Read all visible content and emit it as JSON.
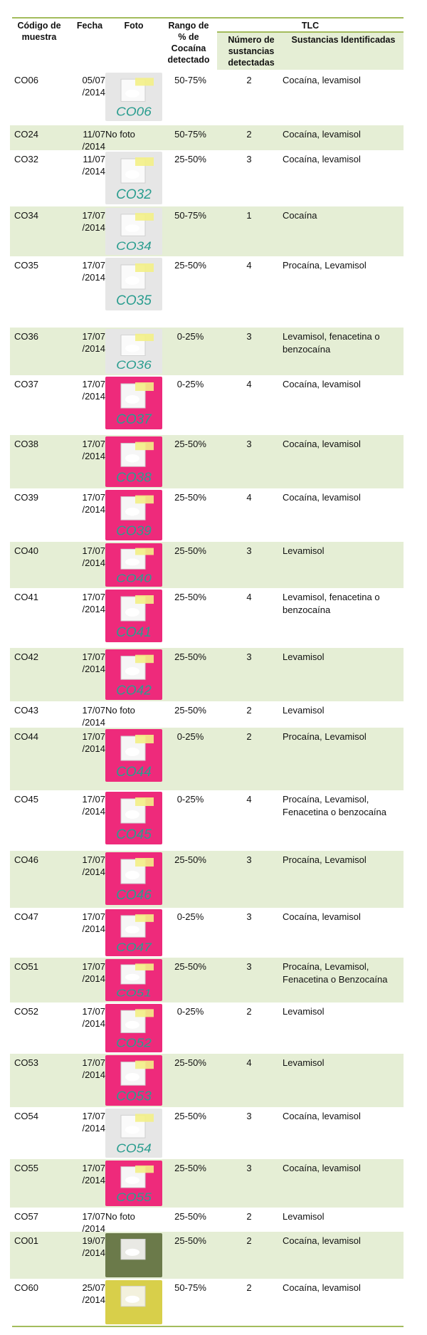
{
  "header": {
    "codigo": "Código de muestra",
    "fecha": "Fecha",
    "foto": "Foto",
    "rango": "Rango de % de Cocaína detectado",
    "tlc": "TLC",
    "numero": "Número de sustancias detectadas",
    "sustancias": "Sustancias Identificadas"
  },
  "colors": {
    "rule": "#a3bc5c",
    "shade": "#e5eed5",
    "photo_label_ink": "#2a9d8f",
    "pink_paper": "#ee2a7b",
    "white_paper": "#e6e6e6",
    "green_paper": "#6b7a4a",
    "yellow_paper": "#d8cf4a"
  },
  "rows": [
    {
      "code": "CO06",
      "date_a": "05/07",
      "date_b": "/2014",
      "photo_label": "CO06",
      "photo_bg": "white",
      "nofoto": "",
      "range": "50-75%",
      "num": "2",
      "subs": "Cocaína, levamisol",
      "shade": false
    },
    {
      "code": "CO24",
      "date_a": "11/07",
      "date_b": "/2014",
      "photo_label": "",
      "photo_bg": "",
      "nofoto": "No foto",
      "range": "50-75%",
      "num": "2",
      "subs": "Cocaína, levamisol",
      "shade": true
    },
    {
      "code": "CO32",
      "date_a": "11/07",
      "date_b": "/2014",
      "photo_label": "CO32",
      "photo_bg": "white",
      "nofoto": "",
      "range": "25-50%",
      "num": "3",
      "subs": "Cocaína, levamisol",
      "shade": false
    },
    {
      "code": "CO34",
      "date_a": "17/07",
      "date_b": "/2014",
      "photo_label": "CO34",
      "photo_bg": "white",
      "nofoto": "",
      "range": "50-75%",
      "num": "1",
      "subs": "Cocaína",
      "shade": true
    },
    {
      "code": "CO35",
      "date_a": "17/07",
      "date_b": "/2014",
      "photo_label": "CO35",
      "photo_bg": "white",
      "nofoto": "",
      "range": "25-50%",
      "num": "4",
      "subs": "Procaína, Levamisol",
      "shade": false
    },
    {
      "code": "CO36",
      "date_a": "17/07",
      "date_b": "/2014",
      "photo_label": "CO36",
      "photo_bg": "white",
      "nofoto": "",
      "range": "0-25%",
      "num": "3",
      "subs": "Levamisol, fenacetina o benzocaína",
      "shade": true
    },
    {
      "code": "CO37",
      "date_a": "17/07",
      "date_b": "/2014",
      "photo_label": "CO37",
      "photo_bg": "pink",
      "nofoto": "",
      "range": "0-25%",
      "num": "4",
      "subs": "Cocaína, levamisol",
      "shade": false
    },
    {
      "code": "CO38",
      "date_a": "17/07",
      "date_b": "/2014",
      "photo_label": "CO38",
      "photo_bg": "pink",
      "nofoto": "",
      "range": "25-50%",
      "num": "3",
      "subs": "Cocaína, levamisol",
      "shade": true
    },
    {
      "code": "CO39",
      "date_a": "17/07",
      "date_b": "/2014",
      "photo_label": "CO39",
      "photo_bg": "pink",
      "nofoto": "",
      "range": "25-50%",
      "num": "4",
      "subs": "Cocaína, levamisol",
      "shade": false
    },
    {
      "code": "CO40",
      "date_a": "17/07",
      "date_b": "/2014",
      "photo_label": "CO40",
      "photo_bg": "pink",
      "nofoto": "",
      "range": "25-50%",
      "num": "3",
      "subs": "Levamisol",
      "shade": true
    },
    {
      "code": "CO41",
      "date_a": "17/07",
      "date_b": "/2014",
      "photo_label": "CO41",
      "photo_bg": "pink",
      "nofoto": "",
      "range": "25-50%",
      "num": "4",
      "subs": "Levamisol, fenacetina o benzocaína",
      "shade": false
    },
    {
      "code": "CO42",
      "date_a": "17/07",
      "date_b": "/2014",
      "photo_label": "CO42",
      "photo_bg": "pink",
      "nofoto": "",
      "range": "25-50%",
      "num": "3",
      "subs": "Levamisol",
      "shade": true
    },
    {
      "code": "CO43",
      "date_a": "17/07",
      "date_b": "/2014",
      "photo_label": "",
      "photo_bg": "",
      "nofoto": "No foto",
      "range": "25-50%",
      "num": "2",
      "subs": "Levamisol",
      "shade": false
    },
    {
      "code": "CO44",
      "date_a": "17/07",
      "date_b": "/2014",
      "photo_label": "CO44",
      "photo_bg": "pink",
      "nofoto": "",
      "range": "0-25%",
      "num": "2",
      "subs": "Procaína, Levamisol",
      "shade": true
    },
    {
      "code": "CO45",
      "date_a": "17/07",
      "date_b": "/2014",
      "photo_label": "CO45",
      "photo_bg": "pink",
      "nofoto": "",
      "range": "0-25%",
      "num": "4",
      "subs": "Procaína, Levamisol, Fenacetina o benzocaína",
      "shade": false
    },
    {
      "code": "CO46",
      "date_a": "17/07",
      "date_b": "/2014",
      "photo_label": "CO46",
      "photo_bg": "pink",
      "nofoto": "",
      "range": "25-50%",
      "num": "3",
      "subs": "Procaína, Levamisol",
      "shade": true
    },
    {
      "code": "CO47",
      "date_a": "17/07",
      "date_b": "/2014",
      "photo_label": "CO47",
      "photo_bg": "pink",
      "nofoto": "",
      "range": "0-25%",
      "num": "3",
      "subs": "Cocaína, levamisol",
      "shade": false
    },
    {
      "code": "CO51",
      "date_a": "17/07",
      "date_b": "/2014",
      "photo_label": "CO51",
      "photo_bg": "pink",
      "nofoto": "",
      "range": "25-50%",
      "num": "3",
      "subs": "Procaína, Levamisol, Fenacetina o Benzocaína",
      "shade": true
    },
    {
      "code": "CO52",
      "date_a": "17/07",
      "date_b": "/2014",
      "photo_label": "CO52",
      "photo_bg": "pink",
      "nofoto": "",
      "range": "0-25%",
      "num": "2",
      "subs": "Levamisol",
      "shade": false
    },
    {
      "code": "CO53",
      "date_a": "17/07",
      "date_b": "/2014",
      "photo_label": "CO53",
      "photo_bg": "pink",
      "nofoto": "",
      "range": "25-50%",
      "num": "4",
      "subs": "Levamisol",
      "shade": true
    },
    {
      "code": "CO54",
      "date_a": "17/07",
      "date_b": "/2014",
      "photo_label": "CO54",
      "photo_bg": "white",
      "nofoto": "",
      "range": "25-50%",
      "num": "3",
      "subs": "Cocaína, levamisol",
      "shade": false
    },
    {
      "code": "CO55",
      "date_a": "17/07",
      "date_b": "/2014",
      "photo_label": "CO55",
      "photo_bg": "pink",
      "nofoto": "",
      "range": "25-50%",
      "num": "3",
      "subs": "Cocaína, levamisol",
      "shade": true
    },
    {
      "code": "CO57",
      "date_a": "17/07",
      "date_b": "/2014",
      "photo_label": "",
      "photo_bg": "",
      "nofoto": "No foto",
      "range": "25-50%",
      "num": "2",
      "subs": "Levamisol",
      "shade": false
    },
    {
      "code": "CO01",
      "date_a": "19/07",
      "date_b": "/2014",
      "photo_label": "",
      "photo_bg": "green",
      "nofoto": "",
      "range": "25-50%",
      "num": "2",
      "subs": "Cocaína, levamisol",
      "shade": true
    },
    {
      "code": "CO60",
      "date_a": "25/07",
      "date_b": "/2014",
      "photo_label": "",
      "photo_bg": "yellow",
      "nofoto": "",
      "range": "50-75%",
      "num": "2",
      "subs": "Cocaína, levamisol",
      "shade": false
    }
  ]
}
